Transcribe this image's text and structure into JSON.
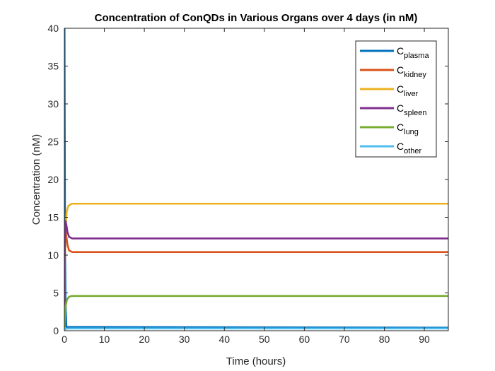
{
  "chart_data": {
    "type": "line",
    "title": "Concentration of ConQDs in Various Organs over 4 days (in nM)",
    "xlabel": "Time (hours)",
    "ylabel": "Concentration (nM)",
    "xlim": [
      0,
      96
    ],
    "ylim": [
      0,
      40
    ],
    "xticks": [
      0,
      10,
      20,
      30,
      40,
      50,
      60,
      70,
      80,
      90
    ],
    "yticks": [
      0,
      5,
      10,
      15,
      20,
      25,
      30,
      35,
      40
    ],
    "grid": false,
    "legend_position": "top-right",
    "series": [
      {
        "name": "plasma",
        "color": "#0072BD",
        "x": [
          0,
          0.05,
          0.1,
          0.15,
          0.2,
          0.3,
          0.5,
          96
        ],
        "y": [
          80,
          40,
          28,
          18,
          10,
          4,
          0.5,
          0.4
        ]
      },
      {
        "name": "kidney",
        "color": "#D95319",
        "x": [
          0,
          0.1,
          0.3,
          0.5,
          0.8,
          1.2,
          2,
          96
        ],
        "y": [
          0,
          9,
          13.5,
          12.5,
          11.3,
          10.6,
          10.4,
          10.4
        ]
      },
      {
        "name": "liver",
        "color": "#EDB120",
        "x": [
          0,
          0.1,
          0.3,
          0.6,
          1,
          1.5,
          2,
          96
        ],
        "y": [
          0,
          8,
          13.5,
          15.8,
          16.5,
          16.7,
          16.8,
          16.8
        ]
      },
      {
        "name": "spleen",
        "color": "#7E2F8E",
        "x": [
          0,
          0.1,
          0.3,
          0.5,
          0.8,
          1.2,
          2,
          96
        ],
        "y": [
          0,
          10,
          14.5,
          14.0,
          13.0,
          12.4,
          12.2,
          12.2
        ]
      },
      {
        "name": "lung",
        "color": "#77AC30",
        "x": [
          0,
          0.1,
          0.3,
          0.6,
          1,
          1.5,
          2,
          96
        ],
        "y": [
          0,
          1.5,
          3.2,
          4.0,
          4.4,
          4.55,
          4.6,
          4.6
        ]
      },
      {
        "name": "other",
        "color": "#4DBEEE",
        "x": [
          0,
          0.1,
          0.3,
          1,
          96
        ],
        "y": [
          0,
          0.15,
          0.25,
          0.3,
          0.3
        ]
      }
    ]
  }
}
